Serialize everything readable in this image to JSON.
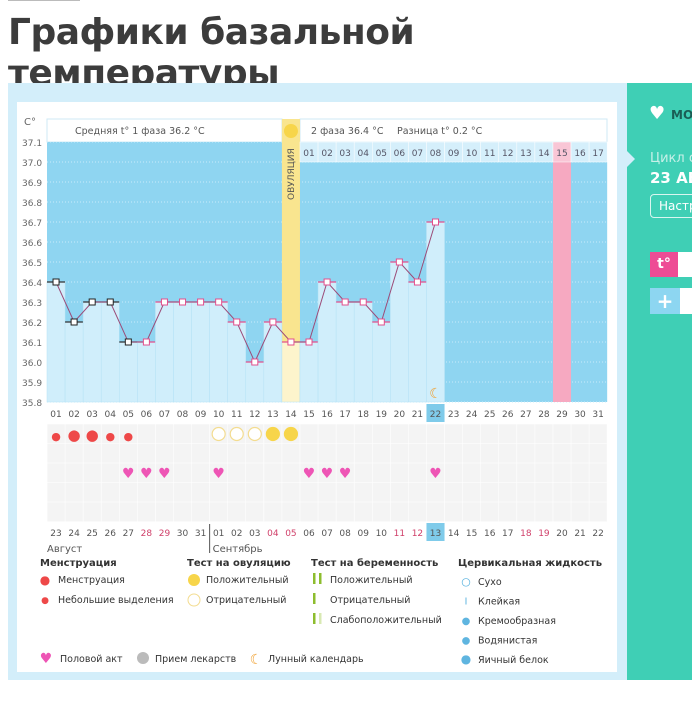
{
  "page_title": "Графики базальной температуры",
  "sidebar": {
    "my_label": "МО",
    "cycle_label": "Цикл от",
    "cycle_date": "23 АВ",
    "settings_button": "Настр",
    "temp_button": "t°",
    "add_button": "+"
  },
  "chart_data": {
    "type": "line",
    "unit_label": "C°",
    "ylim": [
      35.8,
      37.1
    ],
    "y_ticks": [
      "37.1",
      "37.0",
      "36.9",
      "36.8",
      "36.7",
      "36.6",
      "36.5",
      "36.4",
      "36.3",
      "36.2",
      "36.1",
      "36.0",
      "35.9",
      "35.8"
    ],
    "phase1_summary": "Средняя t° 1 фаза 36.2 °C",
    "phase2_summary": "2 фаза 36.4 °C",
    "difference_summary": "Разница t° 0.2 °C",
    "ovulation_label": "ОВУЛЯЦИЯ",
    "ovulation_day": 14,
    "expected_period_day": 29,
    "current_day": 22,
    "cycle_days": [
      "01",
      "02",
      "03",
      "04",
      "05",
      "06",
      "07",
      "08",
      "09",
      "10",
      "11",
      "12",
      "13",
      "14",
      "15",
      "16",
      "17",
      "18",
      "19",
      "20",
      "21",
      "22",
      "23",
      "24",
      "25",
      "26",
      "27",
      "28",
      "29",
      "30",
      "31"
    ],
    "phase2_day_numbers": [
      "01",
      "02",
      "03",
      "04",
      "05",
      "06",
      "07",
      "08",
      "09",
      "10",
      "11",
      "12",
      "13",
      "14",
      "15",
      "16",
      "17"
    ],
    "temperatures": [
      36.4,
      36.2,
      36.3,
      36.3,
      36.1,
      36.1,
      36.3,
      36.3,
      36.3,
      36.3,
      36.2,
      36.0,
      36.2,
      36.1,
      36.1,
      36.4,
      36.3,
      36.3,
      36.2,
      36.5,
      36.4,
      36.7
    ],
    "menstruation_marker_days": 5,
    "dates": [
      "23",
      "24",
      "25",
      "26",
      "27",
      "28",
      "29",
      "30",
      "31",
      "01",
      "02",
      "03",
      "04",
      "05",
      "06",
      "07",
      "08",
      "09",
      "10",
      "11",
      "12",
      "13",
      "14",
      "15",
      "16",
      "17",
      "18",
      "19",
      "20",
      "21",
      "22"
    ],
    "weekend_dates_idx": [
      5,
      6,
      12,
      13,
      19,
      20,
      26,
      27
    ],
    "months": [
      "Август",
      "Сентябрь"
    ],
    "menstruation": {
      "1": "small",
      "2": "big",
      "3": "big",
      "4": "small",
      "5": "small"
    },
    "ovulation_tests": {
      "10": "negative",
      "11": "negative",
      "12": "negative",
      "13": "positive",
      "14": "positive"
    },
    "intercourse_days": [
      5,
      6,
      7,
      10,
      15,
      16,
      17,
      22
    ],
    "moon_day": 22
  },
  "legend": {
    "menstruation": {
      "title": "Менструация",
      "items": [
        "Менструация",
        "Небольшие выделения"
      ]
    },
    "ovulation_test": {
      "title": "Тест на овуляцию",
      "items": [
        "Положительный",
        "Отрицательный"
      ]
    },
    "pregnancy_test": {
      "title": "Тест на беременность",
      "items": [
        "Положительный",
        "Отрицательный",
        "Слабоположительный"
      ]
    },
    "cervical_fluid": {
      "title": "Цервикальная жидкость",
      "items": [
        "Сухо",
        "Клейкая",
        "Кремообразная",
        "Водянистая",
        "Яичный белок"
      ]
    },
    "other": [
      "Половой акт",
      "Прием лекарств",
      "Лунный календарь"
    ]
  },
  "colors": {
    "plot_bg": "#8fd5f1",
    "bar": "#d0eefb",
    "ovulation": "#f9e58f",
    "period": "#f6a9c1",
    "line": "#9b4b78",
    "marker_pink": "#e2508d",
    "teal": "#3fcfb5",
    "drop": "#ee4848",
    "heart": "#ee55b5",
    "sun": "#f7d54a"
  }
}
